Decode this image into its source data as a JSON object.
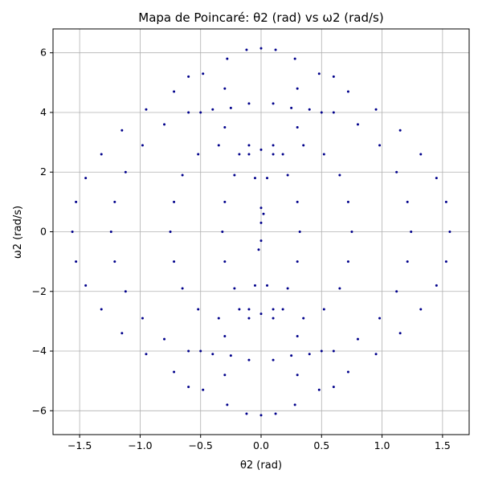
{
  "chart_data": {
    "type": "scatter",
    "title": "Mapa de Poincaré: θ2 (rad) vs ω2 (rad/s)",
    "xlabel": "θ2 (rad)",
    "ylabel": "ω2 (rad/s)",
    "xlim": [
      -1.72,
      1.72
    ],
    "ylim": [
      -6.8,
      6.8
    ],
    "xticks": [
      -1.5,
      -1.0,
      -0.5,
      0.0,
      0.5,
      1.0,
      1.5
    ],
    "xtick_labels": [
      "−1.5",
      "−1.0",
      "−0.5",
      "0.0",
      "0.5",
      "1.0",
      "1.5"
    ],
    "yticks": [
      -6,
      -4,
      -2,
      0,
      2,
      4,
      6
    ],
    "ytick_labels": [
      "−6",
      "−4",
      "−2",
      "0",
      "2",
      "4",
      "6"
    ],
    "grid": true,
    "marker_color": "#00008b",
    "series": [
      {
        "points": [
          [
            1.56,
            0.0
          ],
          [
            1.53,
            1.0
          ],
          [
            1.45,
            1.8
          ],
          [
            1.32,
            2.6
          ],
          [
            1.15,
            3.4
          ],
          [
            0.95,
            4.1
          ],
          [
            0.72,
            4.7
          ],
          [
            0.48,
            5.3
          ],
          [
            0.28,
            5.8
          ],
          [
            0.12,
            6.1
          ],
          [
            0.0,
            6.15
          ],
          [
            -0.12,
            6.1
          ],
          [
            -0.28,
            5.8
          ],
          [
            -0.48,
            5.3
          ],
          [
            -0.72,
            4.7
          ],
          [
            -0.95,
            4.1
          ],
          [
            -1.15,
            3.4
          ],
          [
            -1.32,
            2.6
          ],
          [
            -1.45,
            1.8
          ],
          [
            -1.53,
            1.0
          ],
          [
            -1.56,
            0.0
          ],
          [
            -1.53,
            -1.0
          ],
          [
            -1.45,
            -1.8
          ],
          [
            -1.32,
            -2.6
          ],
          [
            -1.15,
            -3.4
          ],
          [
            -0.95,
            -4.1
          ],
          [
            -0.72,
            -4.7
          ],
          [
            -0.48,
            -5.3
          ],
          [
            -0.28,
            -5.8
          ],
          [
            -0.12,
            -6.1
          ],
          [
            0.0,
            -6.15
          ],
          [
            0.12,
            -6.1
          ],
          [
            0.28,
            -5.8
          ],
          [
            0.48,
            -5.3
          ],
          [
            0.72,
            -4.7
          ],
          [
            0.95,
            -4.1
          ],
          [
            1.15,
            -3.4
          ],
          [
            1.32,
            -2.6
          ],
          [
            1.45,
            -1.8
          ],
          [
            1.53,
            -1.0
          ],
          [
            1.24,
            0.0
          ],
          [
            1.21,
            1.0
          ],
          [
            1.12,
            2.0
          ],
          [
            0.98,
            2.9
          ],
          [
            0.8,
            3.6
          ],
          [
            0.6,
            4.0
          ],
          [
            0.4,
            4.1
          ],
          [
            0.25,
            4.15
          ],
          [
            -0.25,
            4.15
          ],
          [
            -0.4,
            4.1
          ],
          [
            -0.6,
            4.0
          ],
          [
            -0.8,
            3.6
          ],
          [
            -0.98,
            2.9
          ],
          [
            -1.12,
            2.0
          ],
          [
            -1.21,
            1.0
          ],
          [
            -1.24,
            0.0
          ],
          [
            -1.21,
            -1.0
          ],
          [
            -1.12,
            -2.0
          ],
          [
            -0.98,
            -2.9
          ],
          [
            -0.8,
            -3.6
          ],
          [
            -0.6,
            -4.0
          ],
          [
            -0.4,
            -4.1
          ],
          [
            -0.25,
            -4.15
          ],
          [
            0.25,
            -4.15
          ],
          [
            0.4,
            -4.1
          ],
          [
            0.6,
            -4.0
          ],
          [
            0.8,
            -3.6
          ],
          [
            0.98,
            -2.9
          ],
          [
            1.12,
            -2.0
          ],
          [
            1.21,
            -1.0
          ],
          [
            0.75,
            0.0
          ],
          [
            0.72,
            1.0
          ],
          [
            0.65,
            1.9
          ],
          [
            0.52,
            2.6
          ],
          [
            0.35,
            2.9
          ],
          [
            0.18,
            2.6
          ],
          [
            0.05,
            1.8
          ],
          [
            0.0,
            0.8
          ],
          [
            0.05,
            -1.8
          ],
          [
            0.18,
            -2.6
          ],
          [
            0.35,
            -2.9
          ],
          [
            0.52,
            -2.6
          ],
          [
            0.65,
            -1.9
          ],
          [
            0.72,
            -1.0
          ],
          [
            -0.75,
            0.0
          ],
          [
            -0.72,
            1.0
          ],
          [
            -0.65,
            1.9
          ],
          [
            -0.52,
            2.6
          ],
          [
            -0.35,
            2.9
          ],
          [
            -0.18,
            2.6
          ],
          [
            -0.05,
            1.8
          ],
          [
            -0.05,
            -1.8
          ],
          [
            -0.18,
            -2.6
          ],
          [
            -0.35,
            -2.9
          ],
          [
            -0.52,
            -2.6
          ],
          [
            -0.65,
            -1.9
          ],
          [
            -0.72,
            -1.0
          ],
          [
            0.32,
            0.0
          ],
          [
            0.3,
            1.0
          ],
          [
            0.22,
            1.9
          ],
          [
            0.1,
            2.6
          ],
          [
            0.0,
            2.75
          ],
          [
            -0.1,
            2.6
          ],
          [
            -0.22,
            1.9
          ],
          [
            -0.3,
            1.0
          ],
          [
            -0.32,
            0.0
          ],
          [
            -0.3,
            -1.0
          ],
          [
            -0.22,
            -1.9
          ],
          [
            -0.1,
            -2.6
          ],
          [
            0.0,
            -2.75
          ],
          [
            0.1,
            -2.6
          ],
          [
            0.22,
            -1.9
          ],
          [
            0.3,
            -1.0
          ],
          [
            0.6,
            5.2
          ],
          [
            0.3,
            4.8
          ],
          [
            0.1,
            4.3
          ],
          [
            -0.1,
            4.3
          ],
          [
            -0.3,
            4.8
          ],
          [
            -0.6,
            5.2
          ],
          [
            0.6,
            -5.2
          ],
          [
            0.3,
            -4.8
          ],
          [
            0.1,
            -4.3
          ],
          [
            -0.1,
            -4.3
          ],
          [
            -0.3,
            -4.8
          ],
          [
            -0.6,
            -5.2
          ],
          [
            0.5,
            4.0
          ],
          [
            0.3,
            3.5
          ],
          [
            0.1,
            2.9
          ],
          [
            -0.1,
            2.9
          ],
          [
            -0.3,
            3.5
          ],
          [
            -0.5,
            4.0
          ],
          [
            0.5,
            -4.0
          ],
          [
            0.3,
            -3.5
          ],
          [
            0.1,
            -2.9
          ],
          [
            -0.1,
            -2.9
          ],
          [
            -0.3,
            -3.5
          ],
          [
            -0.5,
            -4.0
          ],
          [
            0.0,
            0.3
          ],
          [
            0.0,
            -0.3
          ],
          [
            0.02,
            0.6
          ],
          [
            -0.02,
            -0.6
          ]
        ]
      }
    ]
  }
}
